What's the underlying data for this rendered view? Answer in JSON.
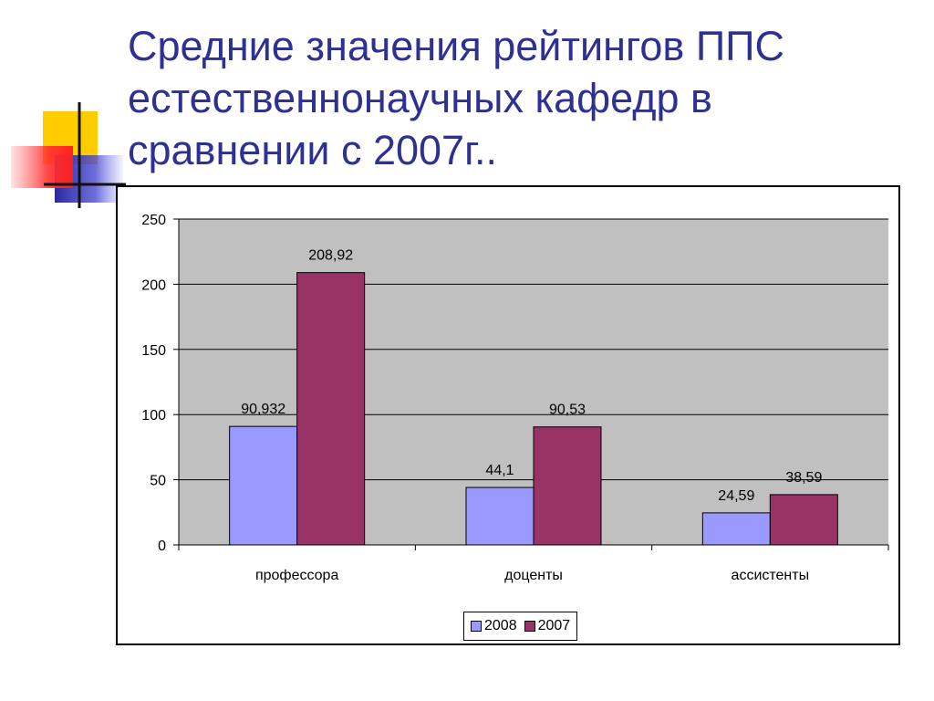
{
  "slide": {
    "title_lines": [
      "Средние значения рейтингов ППС",
      "естественнонаучных кафедр в",
      "сравнении с 2007г.."
    ]
  },
  "colors": {
    "title": "#2e3192",
    "plot_background": "#c0c0c0",
    "series_2008": "#9999ff",
    "series_2007": "#993366"
  },
  "chart_data": {
    "type": "bar",
    "categories": [
      "профессора",
      "доценты",
      "ассистенты"
    ],
    "series": [
      {
        "name": "2008",
        "values": [
          90.932,
          44.1,
          24.59
        ],
        "labels": [
          "90,932",
          "44,1",
          "24,59"
        ]
      },
      {
        "name": "2007",
        "values": [
          208.92,
          90.53,
          38.59
        ],
        "labels": [
          "208,92",
          "90,53",
          "38,59"
        ]
      }
    ],
    "title": "",
    "xlabel": "",
    "ylabel": "",
    "ylim": [
      0,
      250
    ],
    "yticks": [
      0,
      50,
      100,
      150,
      200,
      250
    ],
    "grid": true,
    "legend_position": "bottom-center"
  }
}
